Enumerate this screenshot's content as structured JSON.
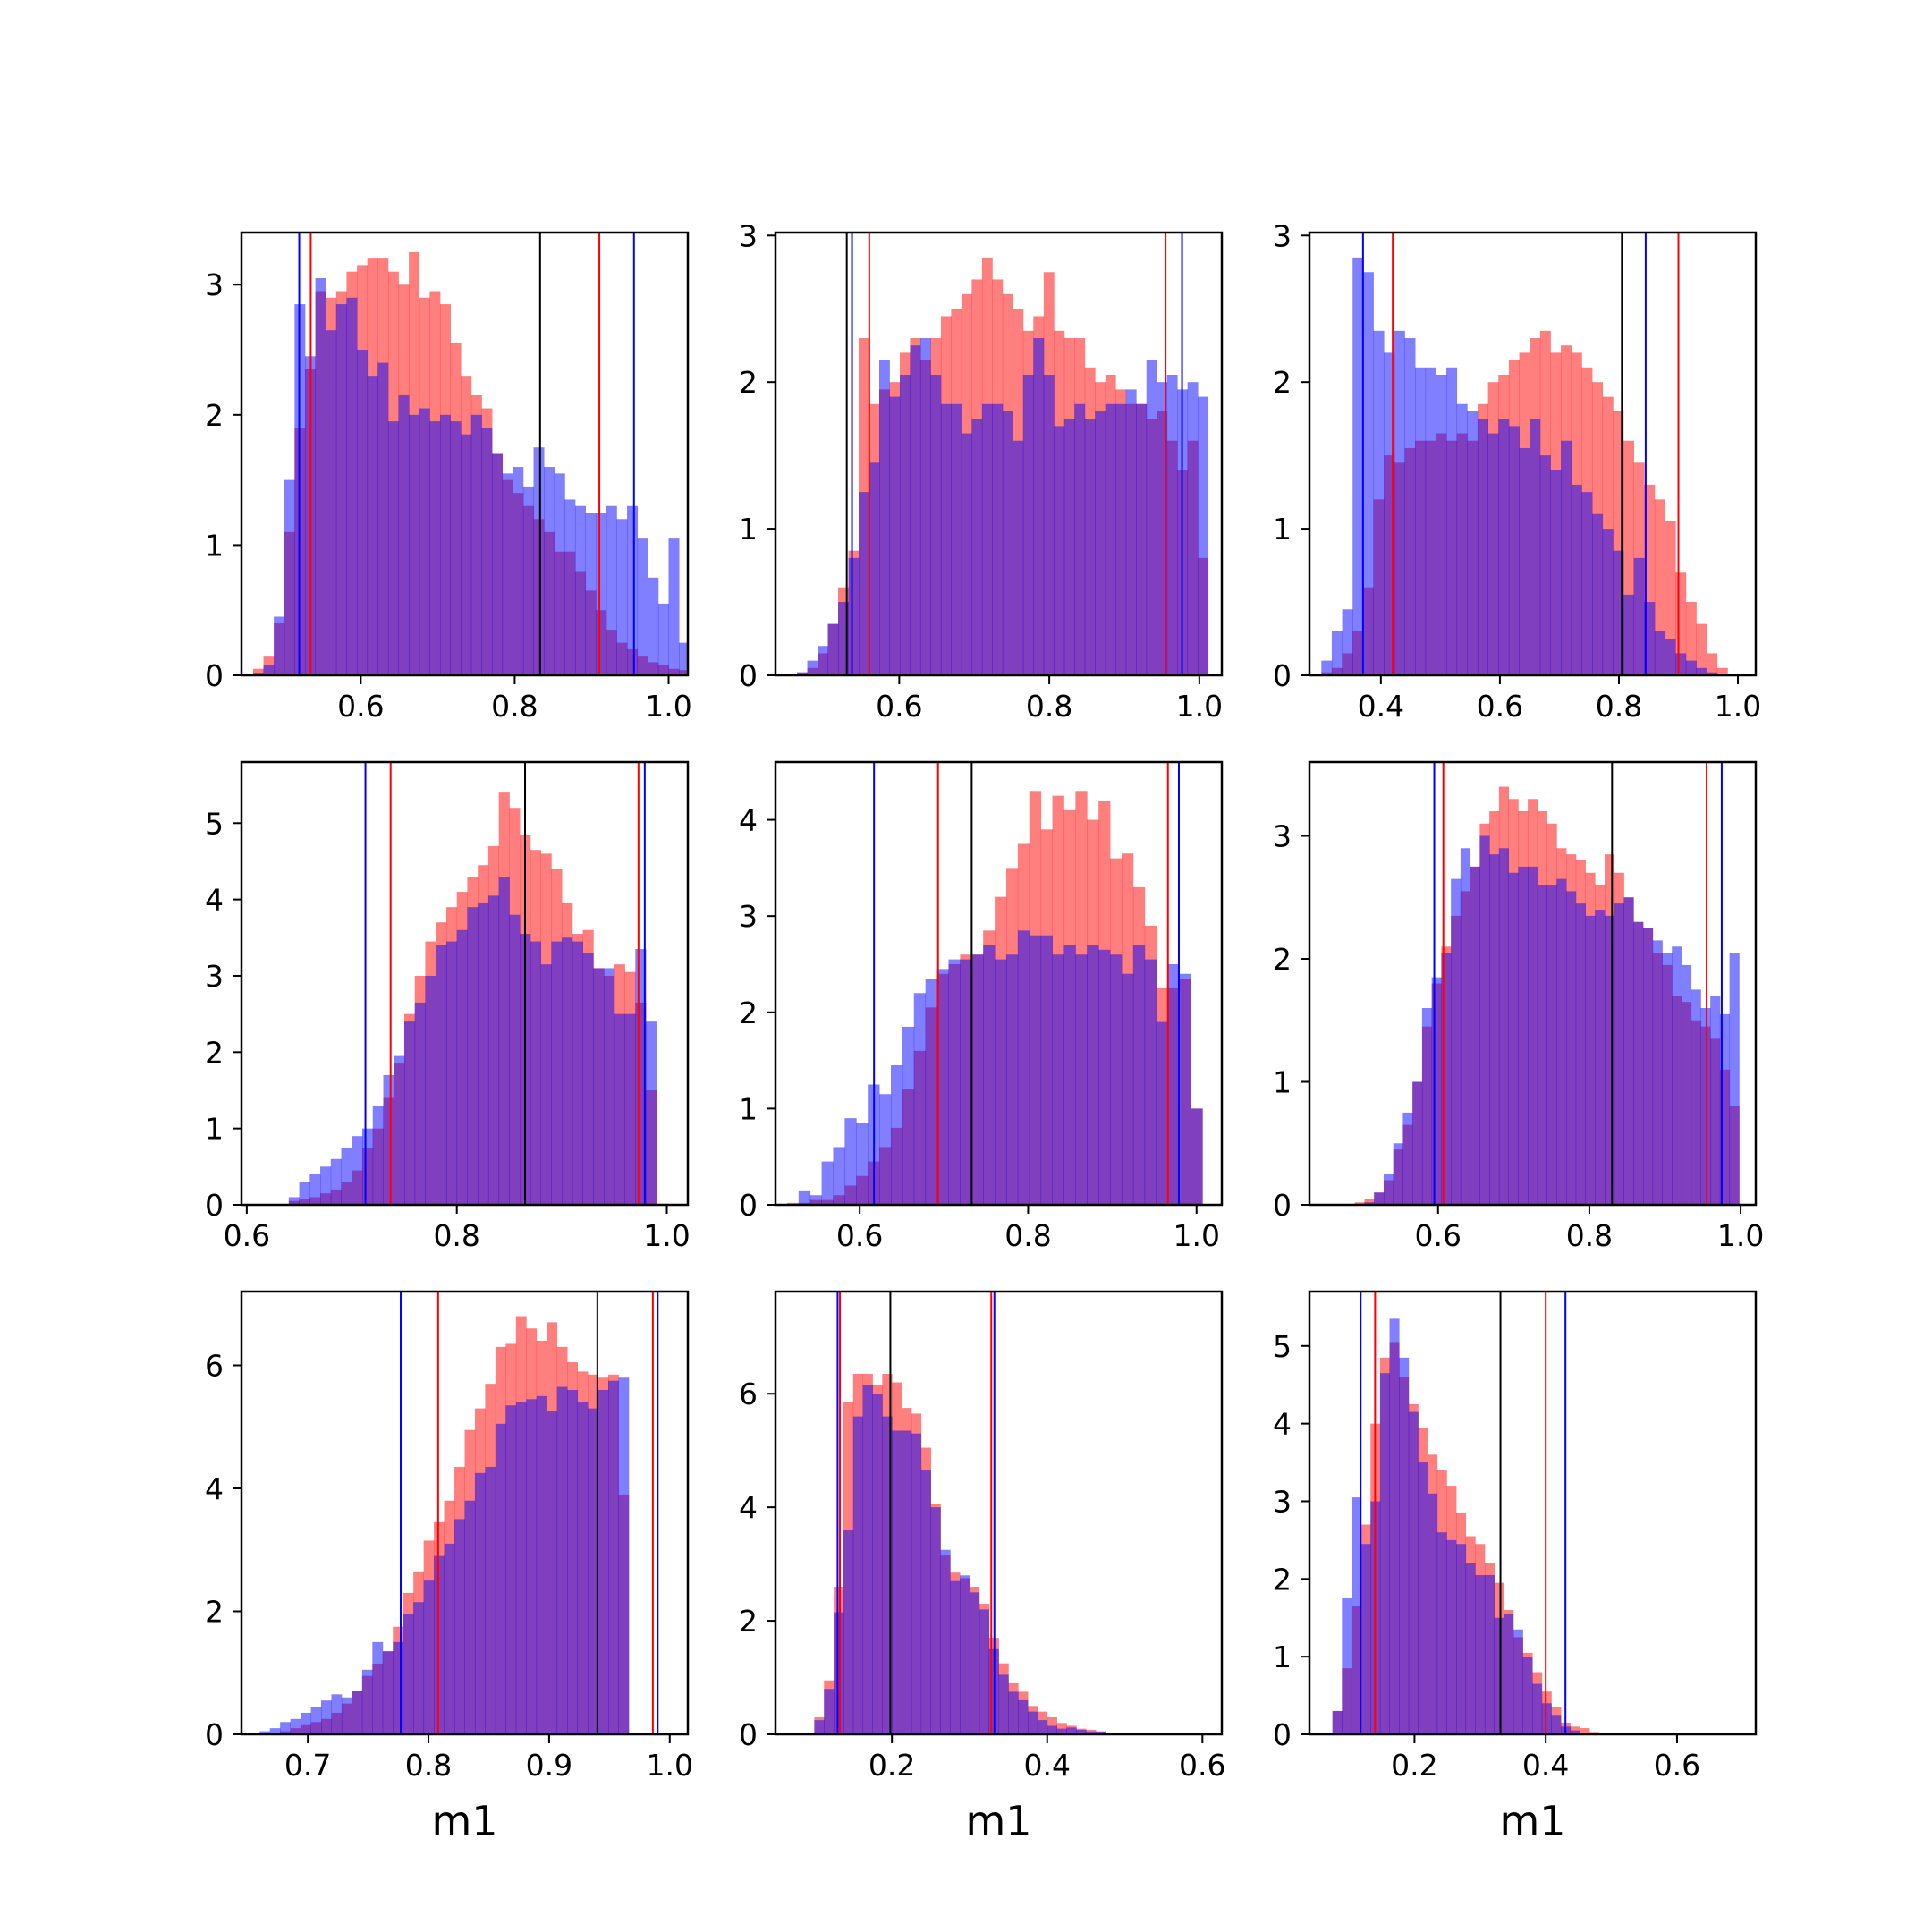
{
  "colors": {
    "red": "#ff0000",
    "blue": "#0000ff",
    "black": "#000000",
    "red_fill": "#ff0000",
    "blue_fill": "#0000ff"
  },
  "chart_data": [
    {
      "type": "bar",
      "xlabel": "",
      "xlim": [
        0.445,
        1.025
      ],
      "ylim": [
        0,
        3.4
      ],
      "xticks": [
        0.6,
        0.8,
        1.0
      ],
      "xtick_labels": [
        "0.6",
        "0.8",
        "1.0"
      ],
      "yticks": [
        0,
        1,
        2,
        3
      ],
      "ytick_labels": [
        "0",
        "1",
        "2",
        "3"
      ],
      "bin_start": 0.46,
      "bin_width": 0.0135,
      "red_values": [
        0.05,
        0.15,
        0.4,
        1.1,
        1.9,
        2.35,
        2.95,
        2.9,
        2.95,
        3.1,
        3.15,
        3.2,
        3.2,
        3.1,
        3.0,
        3.25,
        2.9,
        2.95,
        2.85,
        2.55,
        2.3,
        2.15,
        2.05,
        1.7,
        1.5,
        1.4,
        1.3,
        1.2,
        1.1,
        0.95,
        0.95,
        0.8,
        0.65,
        0.5,
        0.35,
        0.25,
        0.2,
        0.15,
        0.1,
        0.08,
        0.05,
        0.04
      ],
      "blue_values": [
        0.02,
        0.08,
        0.45,
        1.5,
        2.85,
        2.45,
        3.05,
        2.65,
        2.85,
        2.9,
        2.5,
        2.3,
        2.4,
        1.95,
        2.15,
        2.0,
        2.05,
        1.95,
        2.0,
        1.95,
        1.85,
        2.0,
        1.9,
        1.7,
        1.55,
        1.6,
        1.45,
        1.75,
        1.6,
        1.55,
        1.35,
        1.3,
        1.25,
        1.25,
        1.3,
        1.2,
        1.3,
        1.05,
        0.75,
        0.55,
        1.05,
        0.25
      ],
      "vlines": [
        {
          "x": 0.52,
          "color": "blue"
        },
        {
          "x": 0.535,
          "color": "red"
        },
        {
          "x": 0.833,
          "color": "black"
        },
        {
          "x": 0.91,
          "color": "red"
        },
        {
          "x": 0.955,
          "color": "blue"
        }
      ]
    },
    {
      "type": "bar",
      "xlabel": "",
      "xlim": [
        0.435,
        1.03
      ],
      "ylim": [
        0,
        3.02
      ],
      "xticks": [
        0.6,
        0.8,
        1.0
      ],
      "xtick_labels": [
        "0.6",
        "0.8",
        "1.0"
      ],
      "yticks": [
        0,
        1,
        2,
        3
      ],
      "ytick_labels": [
        "0",
        "1",
        "2",
        "3"
      ],
      "bin_start": 0.45,
      "bin_width": 0.0137,
      "red_values": [
        0.0,
        0.02,
        0.05,
        0.15,
        0.35,
        0.6,
        0.85,
        2.3,
        1.85,
        1.95,
        2.0,
        2.2,
        2.3,
        2.15,
        2.3,
        2.45,
        2.5,
        2.6,
        2.7,
        2.85,
        2.7,
        2.6,
        2.5,
        2.35,
        2.45,
        2.75,
        2.35,
        2.3,
        2.3,
        2.1,
        2.0,
        2.05,
        1.95,
        1.85,
        1.85,
        1.75,
        1.8,
        1.6,
        1.4,
        1.6,
        0.8
      ],
      "blue_values": [
        0.0,
        0.02,
        0.1,
        0.2,
        0.35,
        0.5,
        0.8,
        1.25,
        1.45,
        2.15,
        1.9,
        2.05,
        2.25,
        2.3,
        2.05,
        1.85,
        1.85,
        1.65,
        1.75,
        1.85,
        1.85,
        1.8,
        1.6,
        2.05,
        2.3,
        2.05,
        1.7,
        1.75,
        1.85,
        1.75,
        1.8,
        1.85,
        1.85,
        1.95,
        1.85,
        2.15,
        2.0,
        2.05,
        1.95,
        2.0,
        1.9
      ],
      "vlines": [
        {
          "x": 0.53,
          "color": "black"
        },
        {
          "x": 0.537,
          "color": "blue"
        },
        {
          "x": 0.56,
          "color": "red"
        },
        {
          "x": 0.955,
          "color": "red"
        },
        {
          "x": 0.977,
          "color": "blue"
        }
      ]
    },
    {
      "type": "bar",
      "xlabel": "",
      "xlim": [
        0.28,
        1.03
      ],
      "ylim": [
        0,
        3.02
      ],
      "xticks": [
        0.4,
        0.6,
        0.8,
        1.0
      ],
      "xtick_labels": [
        "0.4",
        "0.6",
        "0.8",
        "1.0"
      ],
      "yticks": [
        0,
        1,
        2,
        3
      ],
      "ytick_labels": [
        "0",
        "1",
        "2",
        "3"
      ],
      "bin_start": 0.3,
      "bin_width": 0.0175,
      "red_values": [
        0.02,
        0.05,
        0.15,
        0.3,
        0.6,
        1.2,
        1.5,
        1.45,
        1.55,
        1.6,
        1.6,
        1.65,
        1.6,
        1.65,
        1.6,
        1.85,
        2.0,
        2.05,
        2.15,
        2.2,
        2.3,
        2.35,
        2.2,
        2.25,
        2.2,
        2.1,
        2.0,
        1.9,
        1.8,
        1.6,
        1.45,
        1.3,
        1.2,
        1.05,
        0.7,
        0.5,
        0.35,
        0.15,
        0.05
      ],
      "blue_values": [
        0.1,
        0.3,
        0.45,
        2.85,
        2.75,
        2.35,
        2.2,
        2.35,
        2.3,
        2.1,
        2.1,
        2.05,
        2.1,
        1.85,
        1.8,
        1.75,
        1.65,
        1.75,
        1.7,
        1.55,
        1.75,
        1.5,
        1.4,
        1.6,
        1.3,
        1.25,
        1.1,
        1.0,
        0.85,
        0.55,
        0.8,
        0.5,
        0.3,
        0.25,
        0.15,
        0.1,
        0.05,
        0.02,
        0.0
      ],
      "vlines": [
        {
          "x": 0.37,
          "color": "blue"
        },
        {
          "x": 0.42,
          "color": "red"
        },
        {
          "x": 0.805,
          "color": "black"
        },
        {
          "x": 0.845,
          "color": "blue"
        },
        {
          "x": 0.9,
          "color": "red"
        }
      ]
    },
    {
      "type": "bar",
      "xlabel": "",
      "xlim": [
        0.595,
        1.02
      ],
      "ylim": [
        0,
        5.8
      ],
      "xticks": [
        0.6,
        0.8,
        1.0
      ],
      "xtick_labels": [
        "0.6",
        "0.8",
        "1.0"
      ],
      "yticks": [
        0,
        1,
        2,
        3,
        4,
        5
      ],
      "ytick_labels": [
        "0",
        "1",
        "2",
        "3",
        "4",
        "5"
      ],
      "bin_start": 0.64,
      "bin_width": 0.01,
      "red_values": [
        0.05,
        0.08,
        0.1,
        0.15,
        0.2,
        0.3,
        0.45,
        0.75,
        1.0,
        1.4,
        1.85,
        2.5,
        3.0,
        3.45,
        3.7,
        3.9,
        4.1,
        4.3,
        4.45,
        4.7,
        5.4,
        5.2,
        4.85,
        4.65,
        4.6,
        4.4,
        3.95,
        3.55,
        3.6,
        3.1,
        3.0,
        3.15,
        3.05,
        2.65,
        1.5
      ],
      "blue_values": [
        0.1,
        0.3,
        0.4,
        0.5,
        0.6,
        0.75,
        0.9,
        1.0,
        1.3,
        1.7,
        1.95,
        2.4,
        2.65,
        3.0,
        3.4,
        3.45,
        3.6,
        3.9,
        3.95,
        4.05,
        4.3,
        3.8,
        3.55,
        3.45,
        3.15,
        3.45,
        3.5,
        3.45,
        3.3,
        3.1,
        3.1,
        2.5,
        2.5,
        3.35,
        2.4
      ],
      "vlines": [
        {
          "x": 0.713,
          "color": "blue"
        },
        {
          "x": 0.737,
          "color": "red"
        },
        {
          "x": 0.865,
          "color": "black"
        },
        {
          "x": 0.973,
          "color": "red"
        },
        {
          "x": 0.979,
          "color": "blue"
        }
      ]
    },
    {
      "type": "bar",
      "xlabel": "",
      "xlim": [
        0.5,
        1.03
      ],
      "ylim": [
        0,
        4.6
      ],
      "xticks": [
        0.6,
        0.8,
        1.0
      ],
      "xtick_labels": [
        "0.6",
        "0.8",
        "1.0"
      ],
      "yticks": [
        0,
        1,
        2,
        3,
        4
      ],
      "ytick_labels": [
        "0",
        "1",
        "2",
        "3",
        "4"
      ],
      "bin_start": 0.5,
      "bin_width": 0.0137,
      "red_values": [
        0.0,
        0.02,
        0.02,
        0.05,
        0.05,
        0.1,
        0.2,
        0.3,
        0.45,
        0.6,
        0.8,
        1.2,
        1.6,
        2.05,
        2.4,
        2.5,
        2.6,
        2.6,
        2.85,
        3.2,
        3.5,
        3.75,
        4.3,
        3.9,
        4.25,
        4.1,
        4.3,
        4.0,
        4.2,
        3.6,
        3.65,
        3.3,
        2.9,
        2.25,
        2.25,
        2.35,
        1.0
      ],
      "blue_values": [
        0.0,
        0.0,
        0.15,
        0.1,
        0.45,
        0.6,
        0.9,
        0.85,
        1.25,
        1.15,
        1.45,
        1.85,
        2.2,
        2.35,
        2.45,
        2.55,
        2.55,
        2.6,
        2.7,
        2.55,
        2.6,
        2.85,
        2.8,
        2.8,
        2.6,
        2.7,
        2.6,
        2.7,
        2.65,
        2.6,
        2.4,
        2.7,
        2.55,
        1.9,
        2.5,
        2.4,
        1.0
      ],
      "vlines": [
        {
          "x": 0.617,
          "color": "blue"
        },
        {
          "x": 0.693,
          "color": "red"
        },
        {
          "x": 0.733,
          "color": "black"
        },
        {
          "x": 0.966,
          "color": "red"
        },
        {
          "x": 0.979,
          "color": "blue"
        }
      ]
    },
    {
      "type": "bar",
      "xlabel": "",
      "xlim": [
        0.43,
        1.02
      ],
      "ylim": [
        0,
        3.6
      ],
      "xticks": [
        0.6,
        0.8,
        1.0
      ],
      "xtick_labels": [
        "0.6",
        "0.8",
        "1.0"
      ],
      "yticks": [
        0,
        1,
        2,
        3
      ],
      "ytick_labels": [
        "0",
        "1",
        "2",
        "3"
      ],
      "bin_start": 0.49,
      "bin_width": 0.0127,
      "red_values": [
        0.02,
        0.05,
        0.1,
        0.2,
        0.45,
        0.65,
        1.0,
        1.45,
        1.8,
        2.1,
        2.35,
        2.55,
        2.75,
        3.1,
        3.2,
        3.4,
        3.3,
        3.2,
        3.3,
        3.2,
        3.1,
        2.9,
        2.85,
        2.8,
        2.7,
        2.6,
        2.85,
        2.7,
        2.5,
        2.3,
        2.25,
        2.05,
        1.95,
        1.7,
        1.65,
        1.5,
        1.45,
        1.35,
        1.1,
        0.8
      ],
      "blue_values": [
        0.0,
        0.02,
        0.1,
        0.25,
        0.5,
        0.75,
        1.0,
        1.6,
        1.85,
        2.05,
        2.65,
        2.9,
        2.75,
        3.0,
        2.85,
        2.9,
        2.7,
        2.75,
        2.75,
        2.6,
        2.6,
        2.65,
        2.55,
        2.45,
        2.35,
        2.4,
        2.35,
        2.45,
        2.5,
        2.3,
        2.25,
        2.15,
        2.05,
        2.1,
        1.95,
        1.75,
        1.6,
        1.7,
        1.55,
        2.05
      ],
      "vlines": [
        {
          "x": 0.595,
          "color": "blue"
        },
        {
          "x": 0.607,
          "color": "red"
        },
        {
          "x": 0.83,
          "color": "black"
        },
        {
          "x": 0.955,
          "color": "red"
        },
        {
          "x": 0.975,
          "color": "blue"
        }
      ]
    },
    {
      "type": "bar",
      "xlabel": "m1",
      "xlim": [
        0.645,
        1.015
      ],
      "ylim": [
        0,
        7.2
      ],
      "xticks": [
        0.7,
        0.8,
        0.9,
        1.0
      ],
      "xtick_labels": [
        "0.7",
        "0.8",
        "0.9",
        "1.0"
      ],
      "yticks": [
        0,
        2,
        4,
        6
      ],
      "ytick_labels": [
        "0",
        "2",
        "4",
        "6"
      ],
      "bin_start": 0.66,
      "bin_width": 0.0085,
      "red_values": [
        0.0,
        0.02,
        0.05,
        0.1,
        0.15,
        0.2,
        0.25,
        0.35,
        0.5,
        0.7,
        0.95,
        1.15,
        1.35,
        1.75,
        2.3,
        2.65,
        3.15,
        3.45,
        3.8,
        4.35,
        4.95,
        5.3,
        5.7,
        6.3,
        6.35,
        6.8,
        6.6,
        6.4,
        6.7,
        6.3,
        6.05,
        5.9,
        5.85,
        5.8,
        5.85,
        3.9
      ],
      "blue_values": [
        0.05,
        0.1,
        0.2,
        0.25,
        0.35,
        0.45,
        0.55,
        0.65,
        0.6,
        0.7,
        1.05,
        1.5,
        1.35,
        1.5,
        1.95,
        2.15,
        2.5,
        2.9,
        3.1,
        3.5,
        3.8,
        4.25,
        4.35,
        5.05,
        5.35,
        5.4,
        5.45,
        5.5,
        5.25,
        5.65,
        5.6,
        5.4,
        5.3,
        5.6,
        5.75,
        5.8
      ],
      "vlines": [
        {
          "x": 0.777,
          "color": "blue"
        },
        {
          "x": 0.808,
          "color": "red"
        },
        {
          "x": 0.94,
          "color": "black"
        },
        {
          "x": 0.986,
          "color": "red"
        },
        {
          "x": 0.99,
          "color": "blue"
        }
      ]
    },
    {
      "type": "bar",
      "xlabel": "m1",
      "xlim": [
        0.05,
        0.625
      ],
      "ylim": [
        0,
        7.8
      ],
      "xticks": [
        0.2,
        0.4,
        0.6
      ],
      "xtick_labels": [
        "0.2",
        "0.4",
        "0.6"
      ],
      "yticks": [
        0,
        2,
        4,
        6
      ],
      "ytick_labels": [
        "0",
        "2",
        "4",
        "6"
      ],
      "bin_start": 0.1,
      "bin_width": 0.0125,
      "red_values": [
        0.3,
        0.95,
        2.6,
        5.85,
        6.35,
        6.35,
        6.15,
        6.35,
        6.2,
        5.75,
        5.65,
        5.05,
        4.05,
        3.15,
        2.85,
        2.75,
        2.6,
        2.3,
        1.7,
        1.25,
        0.9,
        0.75,
        0.5,
        0.4,
        0.3,
        0.2,
        0.15,
        0.1,
        0.08,
        0.05,
        0.02
      ],
      "blue_values": [
        0.25,
        0.8,
        2.15,
        3.6,
        5.6,
        6.15,
        6.0,
        5.6,
        5.35,
        5.35,
        5.3,
        4.65,
        4.0,
        3.25,
        2.7,
        2.8,
        2.5,
        2.2,
        1.5,
        1.05,
        0.75,
        0.6,
        0.4,
        0.25,
        0.15,
        0.1,
        0.12,
        0.08,
        0.05,
        0.05,
        0.03
      ],
      "vlines": [
        {
          "x": 0.13,
          "color": "blue"
        },
        {
          "x": 0.133,
          "color": "red"
        },
        {
          "x": 0.198,
          "color": "black"
        },
        {
          "x": 0.328,
          "color": "red"
        },
        {
          "x": 0.332,
          "color": "blue"
        }
      ]
    },
    {
      "type": "bar",
      "xlabel": "m1",
      "xlim": [
        0.04,
        0.72
      ],
      "ylim": [
        0,
        5.7
      ],
      "xticks": [
        0.2,
        0.4,
        0.6
      ],
      "xtick_labels": [
        "0.2",
        "0.4",
        "0.6"
      ],
      "yticks": [
        0,
        1,
        2,
        3,
        4,
        5
      ],
      "ytick_labels": [
        "0",
        "1",
        "2",
        "3",
        "4",
        "5"
      ],
      "bin_start": 0.075,
      "bin_width": 0.0145,
      "red_values": [
        0.3,
        0.85,
        1.65,
        2.7,
        4.0,
        4.85,
        5.05,
        4.6,
        4.25,
        3.95,
        3.6,
        3.4,
        3.2,
        2.85,
        2.55,
        2.45,
        2.2,
        1.95,
        1.6,
        1.25,
        1.05,
        0.8,
        0.55,
        0.35,
        0.15,
        0.1,
        0.08,
        0.03
      ],
      "blue_values": [
        0.3,
        1.75,
        3.05,
        2.45,
        3.0,
        4.65,
        5.35,
        4.85,
        4.15,
        3.5,
        3.1,
        2.6,
        2.5,
        2.45,
        2.2,
        2.05,
        2.05,
        1.5,
        1.55,
        1.35,
        1.0,
        0.65,
        0.4,
        0.25,
        0.1,
        0.05,
        0.02,
        0.02
      ],
      "vlines": [
        {
          "x": 0.118,
          "color": "blue"
        },
        {
          "x": 0.14,
          "color": "red"
        },
        {
          "x": 0.331,
          "color": "black"
        },
        {
          "x": 0.4,
          "color": "red"
        },
        {
          "x": 0.43,
          "color": "blue"
        }
      ]
    }
  ]
}
